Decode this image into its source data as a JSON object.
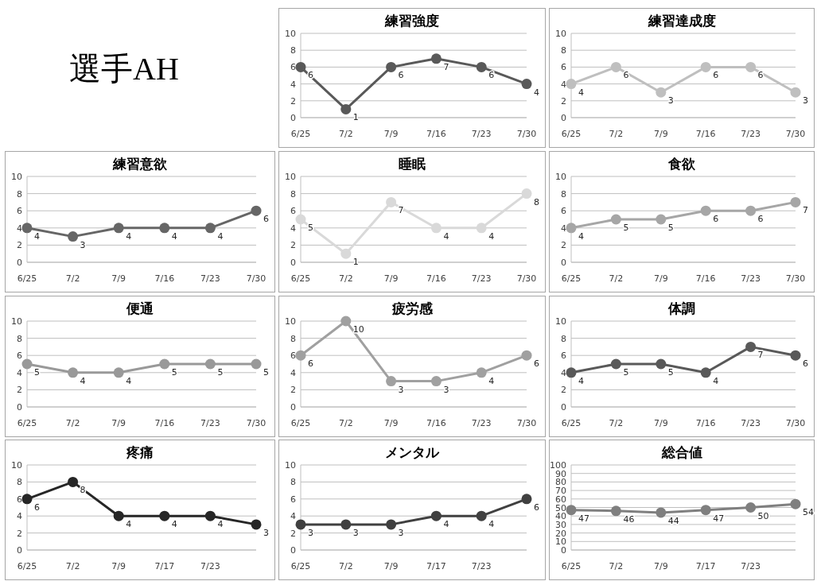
{
  "chart_data": [
    {
      "type": "other",
      "title": "選手AH"
    },
    {
      "type": "line",
      "title": "練習強度",
      "categories": [
        "6/25",
        "7/2",
        "7/9",
        "7/16",
        "7/23",
        "7/30"
      ],
      "series": [
        {
          "color": "#595959",
          "values": [
            6,
            1,
            6,
            7,
            6,
            4
          ]
        }
      ],
      "ylim": [
        0,
        10
      ],
      "yticks": [
        0,
        2,
        4,
        6,
        8,
        10
      ],
      "grid": "y",
      "marker": "circle",
      "data_labels": true
    },
    {
      "type": "line",
      "title": "練習達成度",
      "categories": [
        "6/25",
        "7/2",
        "7/9",
        "7/16",
        "7/23",
        "7/30"
      ],
      "series": [
        {
          "color": "#bfbfbf",
          "values": [
            4,
            6,
            3,
            6,
            6,
            3
          ]
        }
      ],
      "ylim": [
        0,
        10
      ],
      "yticks": [
        0,
        2,
        4,
        6,
        8,
        10
      ],
      "grid": "y",
      "marker": "circle",
      "data_labels": true
    },
    {
      "type": "line",
      "title": "練習意欲",
      "categories": [
        "6/25",
        "7/2",
        "7/9",
        "7/16",
        "7/23",
        "7/30"
      ],
      "series": [
        {
          "color": "#666666",
          "values": [
            4,
            3,
            4,
            4,
            4,
            6
          ]
        }
      ],
      "ylim": [
        0,
        10
      ],
      "yticks": [
        0,
        2,
        4,
        6,
        8,
        10
      ],
      "grid": "y",
      "marker": "circle",
      "data_labels": true
    },
    {
      "type": "line",
      "title": "睡眠",
      "categories": [
        "6/25",
        "7/2",
        "7/9",
        "7/16",
        "7/23",
        "7/30"
      ],
      "series": [
        {
          "color": "#d9d9d9",
          "values": [
            5,
            1,
            7,
            4,
            4,
            8
          ]
        }
      ],
      "ylim": [
        0,
        10
      ],
      "yticks": [
        0,
        2,
        4,
        6,
        8,
        10
      ],
      "grid": "y",
      "marker": "circle",
      "data_labels": true
    },
    {
      "type": "line",
      "title": "食欲",
      "categories": [
        "6/25",
        "7/2",
        "7/9",
        "7/16",
        "7/23",
        "7/30"
      ],
      "series": [
        {
          "color": "#a6a6a6",
          "values": [
            4,
            5,
            5,
            6,
            6,
            7
          ]
        }
      ],
      "ylim": [
        0,
        10
      ],
      "yticks": [
        0,
        2,
        4,
        6,
        8,
        10
      ],
      "grid": "y",
      "marker": "circle",
      "data_labels": true
    },
    {
      "type": "line",
      "title": "便通",
      "categories": [
        "6/25",
        "7/2",
        "7/9",
        "7/16",
        "7/23",
        "7/30"
      ],
      "series": [
        {
          "color": "#999999",
          "values": [
            5,
            4,
            4,
            5,
            5,
            5
          ]
        }
      ],
      "ylim": [
        0,
        10
      ],
      "yticks": [
        0,
        2,
        4,
        6,
        8,
        10
      ],
      "grid": "y",
      "marker": "circle",
      "data_labels": true
    },
    {
      "type": "line",
      "title": "疲労感",
      "categories": [
        "6/25",
        "7/2",
        "7/9",
        "7/16",
        "7/23",
        "7/30"
      ],
      "series": [
        {
          "color": "#a0a0a0",
          "values": [
            6,
            10,
            3,
            3,
            4,
            6
          ]
        }
      ],
      "ylim": [
        0,
        10
      ],
      "yticks": [
        0,
        2,
        4,
        6,
        8,
        10
      ],
      "grid": "y",
      "marker": "circle",
      "data_labels": true
    },
    {
      "type": "line",
      "title": "体調",
      "categories": [
        "6/25",
        "7/2",
        "7/9",
        "7/16",
        "7/23",
        "7/30"
      ],
      "series": [
        {
          "color": "#595959",
          "values": [
            4,
            5,
            5,
            4,
            7,
            6
          ]
        }
      ],
      "ylim": [
        0,
        10
      ],
      "yticks": [
        0,
        2,
        4,
        6,
        8,
        10
      ],
      "grid": "y",
      "marker": "circle",
      "data_labels": true
    },
    {
      "type": "line",
      "title": "疼痛",
      "categories": [
        "6/25",
        "7/2",
        "7/9",
        "7/17",
        "7/23",
        null
      ],
      "series": [
        {
          "color": "#262626",
          "values": [
            6,
            8,
            4,
            4,
            4,
            3
          ]
        }
      ],
      "ylim": [
        0,
        10
      ],
      "yticks": [
        0,
        2,
        4,
        6,
        8,
        10
      ],
      "grid": "y",
      "marker": "circle",
      "data_labels": true
    },
    {
      "type": "line",
      "title": "メンタル",
      "categories": [
        "6/25",
        "7/2",
        "7/9",
        "7/17",
        "7/23",
        null
      ],
      "series": [
        {
          "color": "#404040",
          "values": [
            3,
            3,
            3,
            4,
            4,
            6
          ]
        }
      ],
      "ylim": [
        0,
        10
      ],
      "yticks": [
        0,
        2,
        4,
        6,
        8,
        10
      ],
      "grid": "y",
      "marker": "circle",
      "data_labels": true
    },
    {
      "type": "line",
      "title": "総合値",
      "categories": [
        "6/25",
        "7/2",
        "7/9",
        "7/17",
        "7/23",
        null
      ],
      "series": [
        {
          "color": "#7f7f7f",
          "values": [
            47,
            46,
            44,
            47,
            50,
            54
          ]
        }
      ],
      "ylim": [
        0,
        100
      ],
      "yticks": [
        0,
        10,
        20,
        30,
        40,
        50,
        60,
        70,
        80,
        90,
        100
      ],
      "grid": "y",
      "marker": "circle",
      "data_labels": true
    }
  ]
}
